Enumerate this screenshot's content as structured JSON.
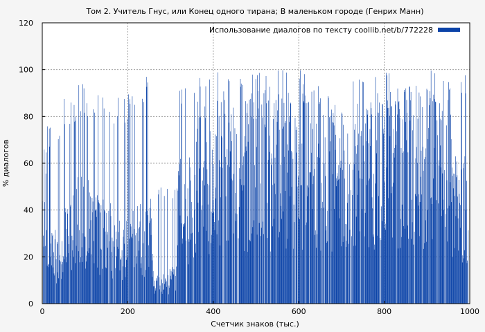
{
  "chart_data": {
    "type": "bar",
    "title": "Том 2. Учитель Гнус, или Конец одного тирана; В маленьком городе (Генрих Манн)",
    "xlabel": "Счетчик знаков (тыс.)",
    "ylabel": "% диалогов",
    "xlim": [
      0,
      1000
    ],
    "ylim": [
      0,
      120
    ],
    "x_ticks": [
      0,
      200,
      400,
      600,
      800,
      1000
    ],
    "y_ticks": [
      0,
      20,
      40,
      60,
      80,
      100,
      120
    ],
    "x_tick_labels": [
      "0",
      "200",
      "400",
      "600",
      "800",
      "1000"
    ],
    "y_tick_labels": [
      "0",
      "20",
      "40",
      "60",
      "80",
      "100",
      "120"
    ],
    "grid": true,
    "legend_position": "top-right",
    "series": [
      {
        "name": "Использование диалогов по тексту coollib.net/b/772228",
        "color": "#0b43a8",
        "bin_width": 1,
        "x_range": [
          0,
          997
        ],
        "segment_envelope": [
          {
            "x_from": 0,
            "x_to": 10,
            "typical": 35,
            "max": 68
          },
          {
            "x_from": 10,
            "x_to": 50,
            "typical": 20,
            "max": 78
          },
          {
            "x_from": 50,
            "x_to": 80,
            "typical": 30,
            "max": 88
          },
          {
            "x_from": 80,
            "x_to": 110,
            "typical": 35,
            "max": 94
          },
          {
            "x_from": 110,
            "x_to": 160,
            "typical": 30,
            "max": 92
          },
          {
            "x_from": 160,
            "x_to": 200,
            "typical": 25,
            "max": 88
          },
          {
            "x_from": 200,
            "x_to": 260,
            "typical": 28,
            "max": 98
          },
          {
            "x_from": 260,
            "x_to": 315,
            "typical": 10,
            "max": 50
          },
          {
            "x_from": 315,
            "x_to": 360,
            "typical": 40,
            "max": 96
          },
          {
            "x_from": 360,
            "x_to": 400,
            "typical": 50,
            "max": 98
          },
          {
            "x_from": 400,
            "x_to": 600,
            "typical": 55,
            "max": 100
          },
          {
            "x_from": 600,
            "x_to": 800,
            "typical": 55,
            "max": 100
          },
          {
            "x_from": 800,
            "x_to": 960,
            "typical": 58,
            "max": 100
          },
          {
            "x_from": 960,
            "x_to": 997,
            "typical": 40,
            "max": 98
          }
        ]
      }
    ]
  }
}
